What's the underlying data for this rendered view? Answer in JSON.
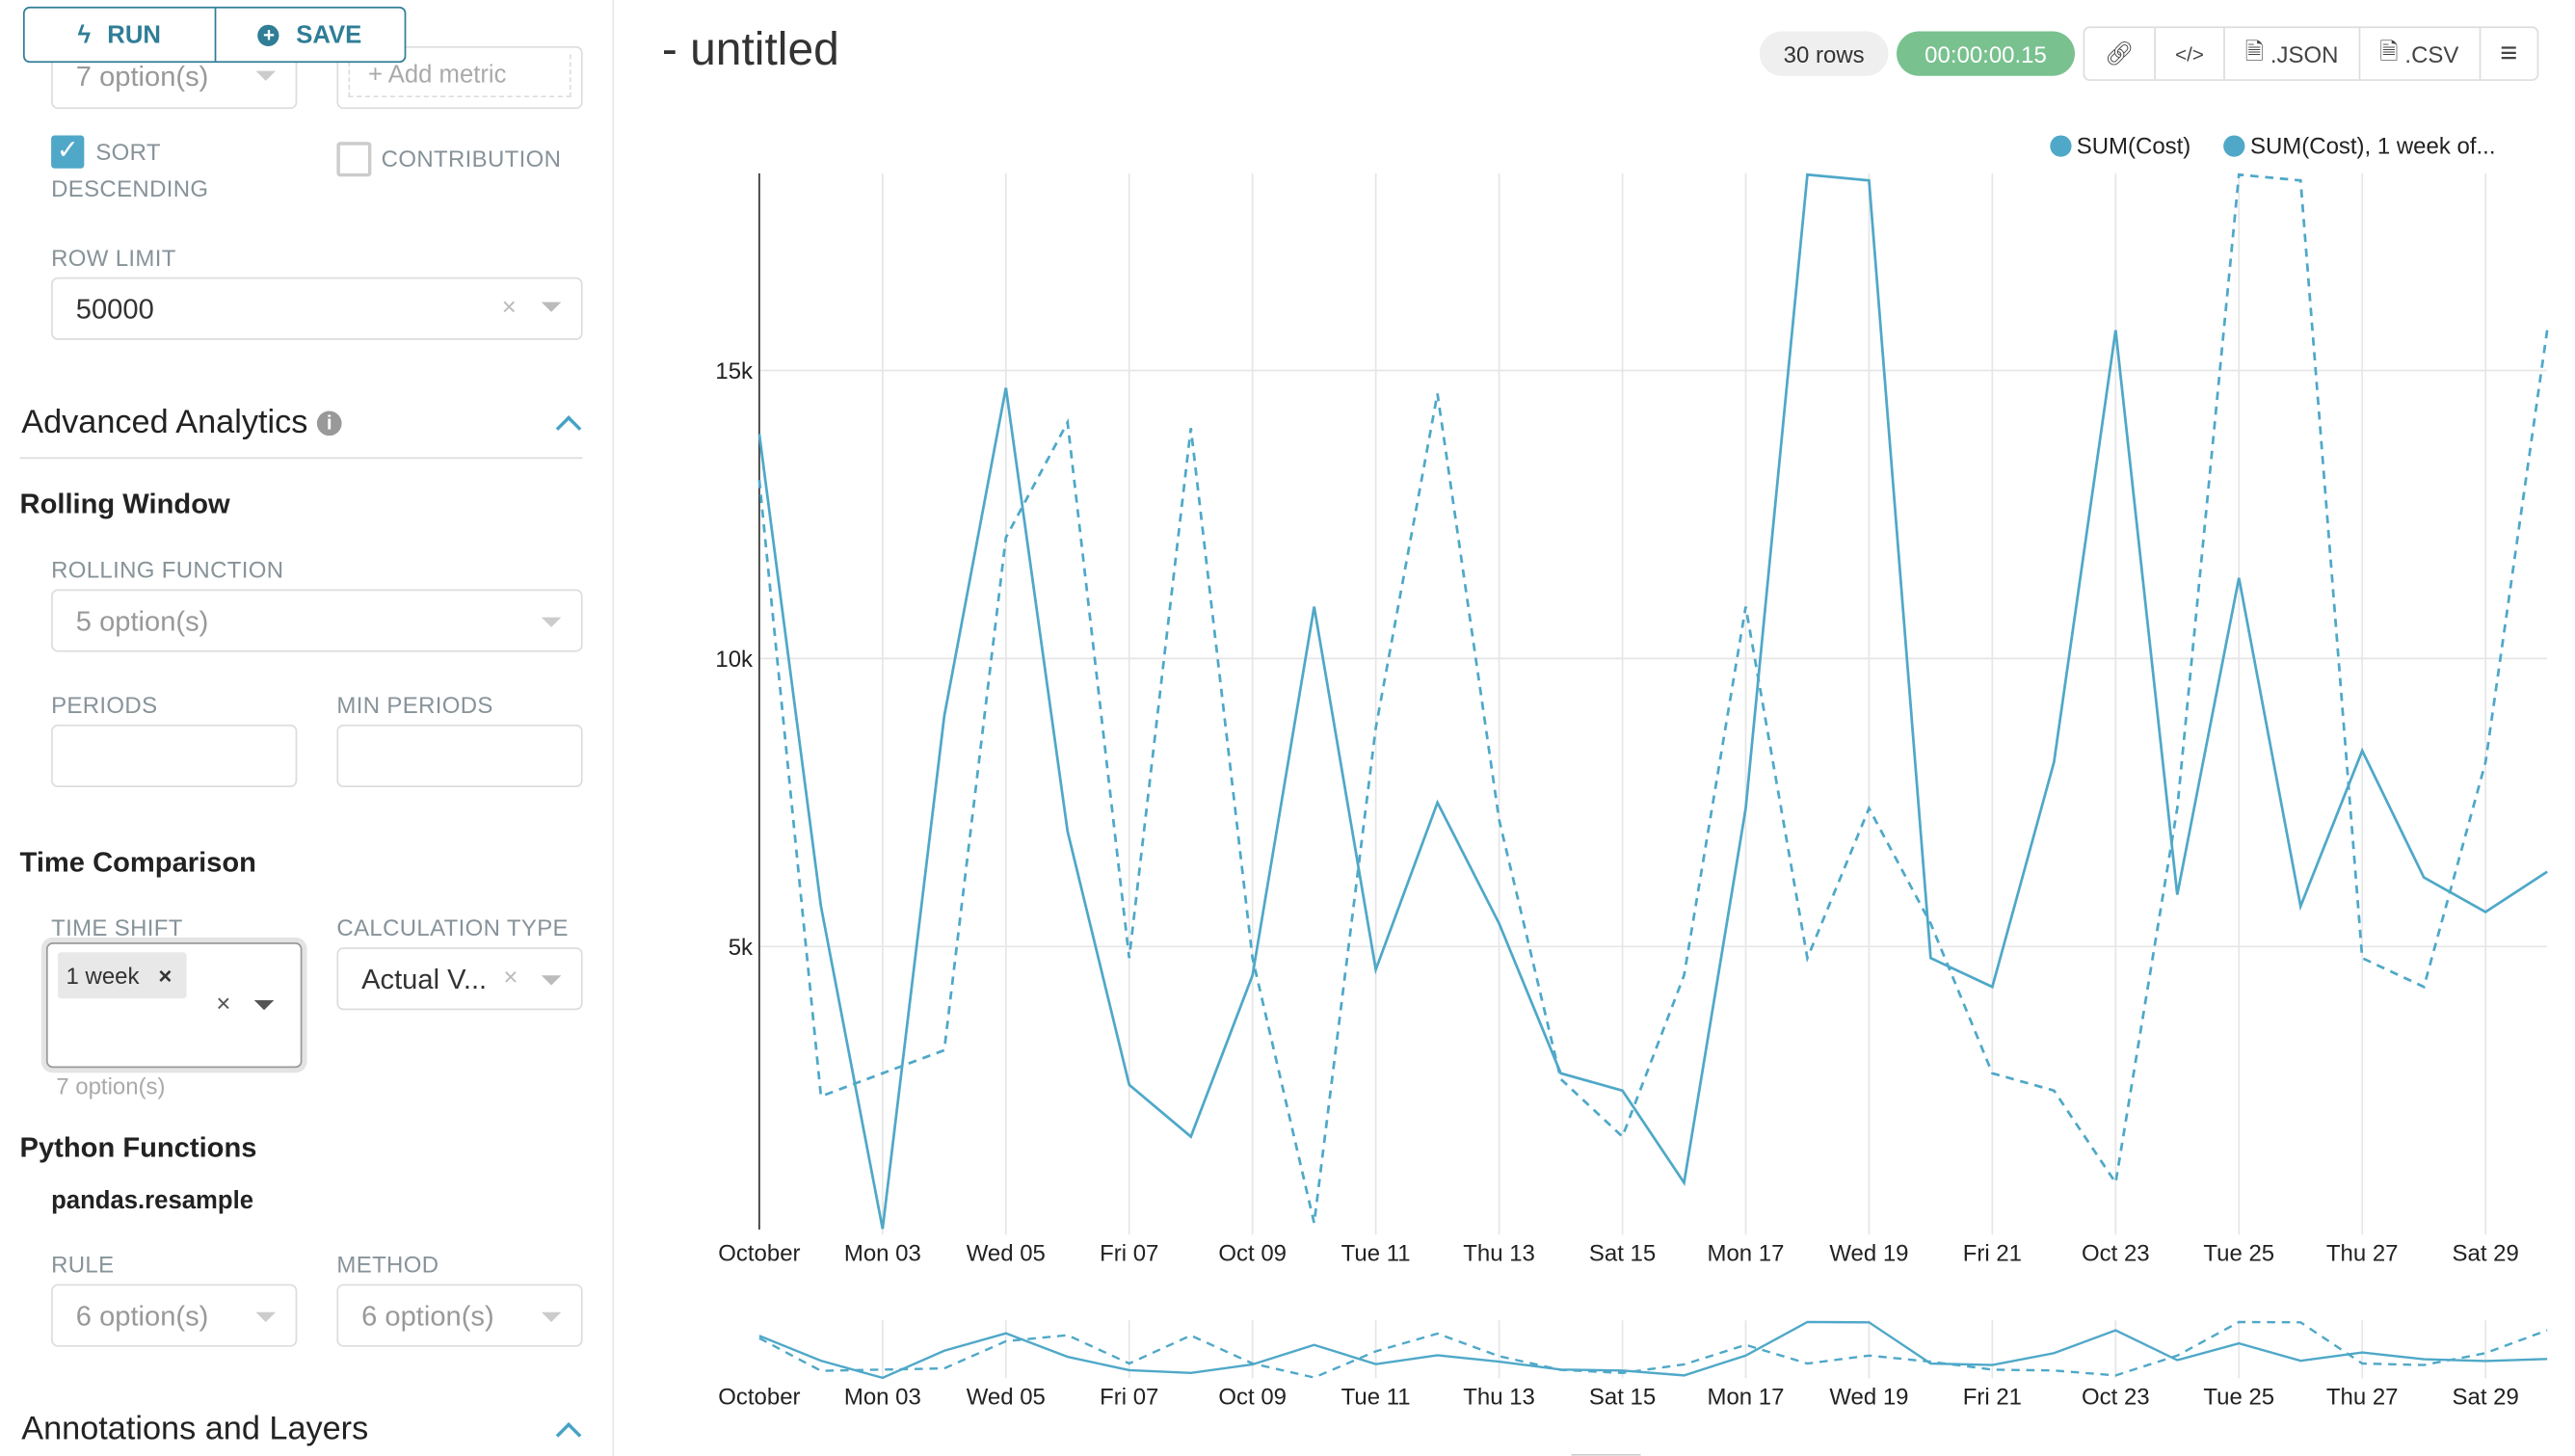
{
  "toolbar": {
    "run_label": "RUN",
    "save_label": "SAVE"
  },
  "sidebar": {
    "series_select": "7 option(s)",
    "add_metric": "Add metric",
    "sort_descending": {
      "label1": "SORT",
      "label2": "DESCENDING",
      "checked": true
    },
    "contribution": {
      "label": "CONTRIBUTION",
      "checked": false
    },
    "row_limit": {
      "label": "ROW LIMIT",
      "value": "50000"
    },
    "advanced_analytics": {
      "title": "Advanced Analytics"
    },
    "rolling_window": {
      "title": "Rolling Window",
      "function_label": "ROLLING FUNCTION",
      "function_value": "5 option(s)",
      "periods_label": "PERIODS",
      "periods_value": "",
      "min_periods_label": "MIN PERIODS",
      "min_periods_value": ""
    },
    "time_comparison": {
      "title": "Time Comparison",
      "time_shift_label": "TIME SHIFT",
      "time_shift_tag": "1 week",
      "time_shift_hint": "7 option(s)",
      "calc_type_label": "CALCULATION TYPE",
      "calc_type_value": "Actual V..."
    },
    "python_functions": {
      "title": "Python Functions",
      "subtitle": "pandas.resample",
      "rule_label": "RULE",
      "rule_value": "6 option(s)",
      "method_label": "METHOD",
      "method_value": "6 option(s)"
    },
    "annotations": {
      "title": "Annotations and Layers"
    }
  },
  "header": {
    "title": "- untitled",
    "rows": "30 rows",
    "timer": "00:00:00.15",
    "json_label": ".JSON",
    "csv_label": ".CSV"
  },
  "colors": {
    "accent": "#2f7d96",
    "series": "#4fa8c8",
    "timer_bg": "#79c18f"
  },
  "chart_data": {
    "type": "line",
    "x": [
      "2016-10-01",
      "2016-10-02",
      "2016-10-03",
      "2016-10-04",
      "2016-10-05",
      "2016-10-06",
      "2016-10-07",
      "2016-10-08",
      "2016-10-09",
      "2016-10-10",
      "2016-10-11",
      "2016-10-12",
      "2016-10-13",
      "2016-10-14",
      "2016-10-15",
      "2016-10-16",
      "2016-10-17",
      "2016-10-18",
      "2016-10-19",
      "2016-10-20",
      "2016-10-21",
      "2016-10-22",
      "2016-10-23",
      "2016-10-24",
      "2016-10-25",
      "2016-10-26",
      "2016-10-27",
      "2016-10-28",
      "2016-10-29",
      "2016-10-30"
    ],
    "x_tick_labels": [
      "October",
      "Mon 03",
      "Wed 05",
      "Fri 07",
      "Oct 09",
      "Tue 11",
      "Thu 13",
      "Sat 15",
      "Mon 17",
      "Wed 19",
      "Fri 21",
      "Oct 23",
      "Tue 25",
      "Thu 27",
      "Sat 29"
    ],
    "y_tick_labels": [
      "5k",
      "10k",
      "15k"
    ],
    "y_ticks": [
      5000,
      10000,
      15000
    ],
    "ylim": [
      0,
      18400
    ],
    "grid": true,
    "legend_position": "top-right",
    "series": [
      {
        "name": "SUM(Cost)",
        "style": "solid",
        "values": [
          13900,
          5700,
          100,
          9000,
          14700,
          7000,
          2600,
          1700,
          4500,
          10900,
          4600,
          7500,
          5400,
          2800,
          2500,
          900,
          7400,
          18400,
          18300,
          4800,
          4300,
          8200,
          15700,
          5900,
          11400,
          5700,
          8400,
          6200,
          5600,
          6300
        ]
      },
      {
        "name": "SUM(Cost), 1 week of...",
        "style": "dashed",
        "values": [
          13100,
          2400,
          2800,
          3200,
          12100,
          14100,
          4800,
          14000,
          4800,
          200,
          8800,
          14600,
          7200,
          2700,
          1700,
          4500,
          10900,
          4800,
          7400,
          5400,
          2800,
          2500,
          900,
          7400,
          18400,
          18300,
          4800,
          4300,
          8200,
          15700
        ]
      }
    ]
  }
}
